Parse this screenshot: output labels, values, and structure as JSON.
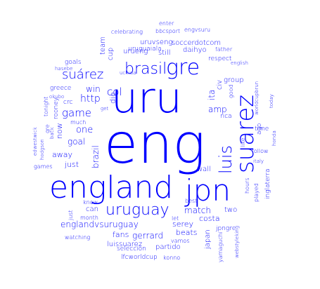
{
  "colors": {
    "word": "#0000ff",
    "background": "#ffffff"
  },
  "words": [
    "eng",
    "uru",
    "england",
    "jpn",
    "suarez",
    "gre",
    "brasil",
    "uruguay",
    "luis",
    "suárez",
    "game",
    "col",
    "http",
    "win",
    "one",
    "goal",
    "away",
    "just",
    "now",
    "brazil",
    "englandvsuruguay",
    "match",
    "gerrard",
    "serey",
    "fans",
    "luissuarez",
    "partido",
    "selección",
    "lfcworldcup",
    "konno",
    "costa",
    "beats",
    "two",
    "japan",
    "jpngre",
    "amp",
    "ita",
    "civ",
    "rica",
    "die",
    "uruguaiala",
    "uruvseng",
    "soccerdotcom",
    "daihyo",
    "still",
    "cup",
    "team",
    "urueng",
    "celebrating",
    "bbcsport",
    "engvsuru",
    "enter",
    "father",
    "respect",
    "english",
    "group",
    "goals",
    "hasebe",
    "uchida",
    "greece",
    "okubo",
    "tonight",
    "rooney",
    "much",
    "gre",
    "back",
    "edwestwick",
    "hodgson",
    "games",
    "crc",
    "get",
    "good",
    "worldcupbrun",
    "today",
    "ago",
    "time",
    "hours",
    "played",
    "like",
    "follow",
    "italy",
    "inglaterra",
    "honda",
    "wall",
    "best",
    "know",
    "can",
    "month",
    "watching",
    "vamos",
    "yamaguchi",
    "webstyleking",
    "just",
    "let"
  ]
}
